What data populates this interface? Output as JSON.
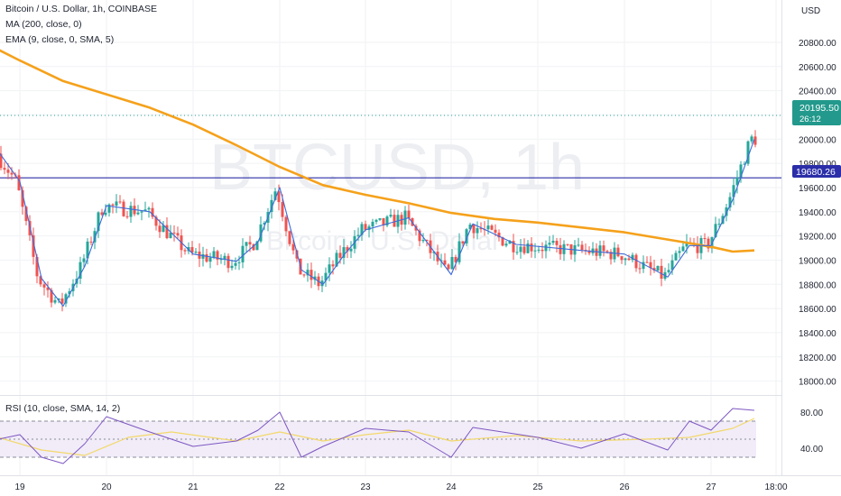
{
  "header": {
    "title": "Bitcoin / U.S. Dollar, 1h, COINBASE",
    "ma_label": "MA (200, close, 0)",
    "ema_label": "EMA (9, close, 0, SMA, 5)",
    "rsi_label": "RSI (10, close, SMA, 14, 2)"
  },
  "watermark": {
    "symbol": "BTCUSD, 1h",
    "name": "Bitcoin / U.S. Dollar"
  },
  "price_axis": {
    "currency": "USD"
  },
  "badges": {
    "last_price": "20195.50",
    "countdown": "26:12",
    "level": "19680.26"
  },
  "colors": {
    "up": "#26a69a",
    "down": "#ef5350",
    "ma": "#f5a11b",
    "ema": "#3f6ad8",
    "level": "#2b2ea8",
    "rsi_line": "#7e57c2",
    "rsi_signal": "#f3d86b",
    "rsi_band": "#ede7f6",
    "last_price_badge": "#22998c"
  },
  "chart_data": [
    {
      "type": "candlestick",
      "title": "Bitcoin / U.S. Dollar, 1h, COINBASE",
      "ylabel": "USD",
      "ylim": [
        17900,
        21150
      ],
      "x_ticks": [
        "19",
        "20",
        "21",
        "22",
        "23",
        "24",
        "25",
        "26",
        "27",
        "18:00"
      ],
      "y_ticks": [
        18000,
        18200,
        18400,
        18600,
        18800,
        19000,
        19200,
        19400,
        19600,
        19800,
        20000,
        20200,
        20400,
        20600,
        20800
      ],
      "horizontal_level": 19680.26,
      "last_price": 20195.5,
      "series": [
        {
          "name": "MA (200, close, 0)",
          "points": [
            [
              "18 18:00",
              20740
            ],
            [
              "19 00:00",
              20650
            ],
            [
              "19 12:00",
              20480
            ],
            [
              "20 00:00",
              20370
            ],
            [
              "20 12:00",
              20260
            ],
            [
              "21 00:00",
              20120
            ],
            [
              "21 12:00",
              19950
            ],
            [
              "22 00:00",
              19770
            ],
            [
              "22 12:00",
              19620
            ],
            [
              "23 00:00",
              19540
            ],
            [
              "23 12:00",
              19470
            ],
            [
              "24 00:00",
              19390
            ],
            [
              "24 12:00",
              19340
            ],
            [
              "25 00:00",
              19310
            ],
            [
              "25 12:00",
              19270
            ],
            [
              "26 00:00",
              19230
            ],
            [
              "26 12:00",
              19170
            ],
            [
              "27 00:00",
              19110
            ],
            [
              "27 06:00",
              19070
            ],
            [
              "27 12:00",
              19080
            ]
          ]
        },
        {
          "name": "EMA (9, close, 0, SMA, 5)",
          "points": [
            [
              "18 18:00",
              19900
            ],
            [
              "19 00:00",
              19650
            ],
            [
              "19 06:00",
              18850
            ],
            [
              "19 12:00",
              18620
            ],
            [
              "19 18:00",
              18950
            ],
            [
              "20 00:00",
              19450
            ],
            [
              "20 12:00",
              19400
            ],
            [
              "21 00:00",
              19050
            ],
            [
              "21 12:00",
              18990
            ],
            [
              "21 18:00",
              19150
            ],
            [
              "22 00:00",
              19600
            ],
            [
              "22 06:00",
              18920
            ],
            [
              "22 12:00",
              18800
            ],
            [
              "22 18:00",
              19050
            ],
            [
              "23 00:00",
              19250
            ],
            [
              "23 12:00",
              19350
            ],
            [
              "24 00:00",
              18880
            ],
            [
              "24 06:00",
              19300
            ],
            [
              "24 18:00",
              19130
            ],
            [
              "25 12:00",
              19080
            ],
            [
              "26 00:00",
              19050
            ],
            [
              "26 12:00",
              18860
            ],
            [
              "26 18:00",
              19120
            ],
            [
              "27 00:00",
              19120
            ],
            [
              "27 06:00",
              19500
            ],
            [
              "27 12:00",
              20000
            ]
          ]
        }
      ]
    },
    {
      "type": "line",
      "title": "RSI (10, close, SMA, 14, 2)",
      "ylim": [
        17,
        95
      ],
      "y_ticks": [
        40,
        80
      ],
      "bands": [
        30,
        50,
        70
      ],
      "series": [
        {
          "name": "RSI",
          "points": [
            [
              "18 18:00",
              50
            ],
            [
              "19 00:00",
              55
            ],
            [
              "19 06:00",
              30
            ],
            [
              "19 12:00",
              23
            ],
            [
              "19 18:00",
              45
            ],
            [
              "20 00:00",
              75
            ],
            [
              "20 12:00",
              58
            ],
            [
              "21 00:00",
              42
            ],
            [
              "21 12:00",
              48
            ],
            [
              "21 18:00",
              60
            ],
            [
              "22 00:00",
              80
            ],
            [
              "22 06:00",
              30
            ],
            [
              "22 12:00",
              42
            ],
            [
              "23 00:00",
              62
            ],
            [
              "23 12:00",
              58
            ],
            [
              "24 00:00",
              30
            ],
            [
              "24 06:00",
              63
            ],
            [
              "25 00:00",
              52
            ],
            [
              "25 12:00",
              40
            ],
            [
              "26 00:00",
              56
            ],
            [
              "26 12:00",
              38
            ],
            [
              "26 18:00",
              70
            ],
            [
              "27 00:00",
              60
            ],
            [
              "27 06:00",
              84
            ],
            [
              "27 12:00",
              82
            ]
          ]
        },
        {
          "name": "RSI-based MA",
          "points": [
            [
              "18 18:00",
              52
            ],
            [
              "19 06:00",
              38
            ],
            [
              "19 18:00",
              32
            ],
            [
              "20 06:00",
              52
            ],
            [
              "20 18:00",
              58
            ],
            [
              "21 12:00",
              48
            ],
            [
              "22 00:00",
              58
            ],
            [
              "22 12:00",
              48
            ],
            [
              "23 00:00",
              55
            ],
            [
              "23 12:00",
              60
            ],
            [
              "24 00:00",
              48
            ],
            [
              "24 18:00",
              54
            ],
            [
              "25 12:00",
              48
            ],
            [
              "26 06:00",
              50
            ],
            [
              "26 18:00",
              52
            ],
            [
              "27 06:00",
              62
            ],
            [
              "27 12:00",
              73
            ]
          ]
        }
      ]
    }
  ]
}
